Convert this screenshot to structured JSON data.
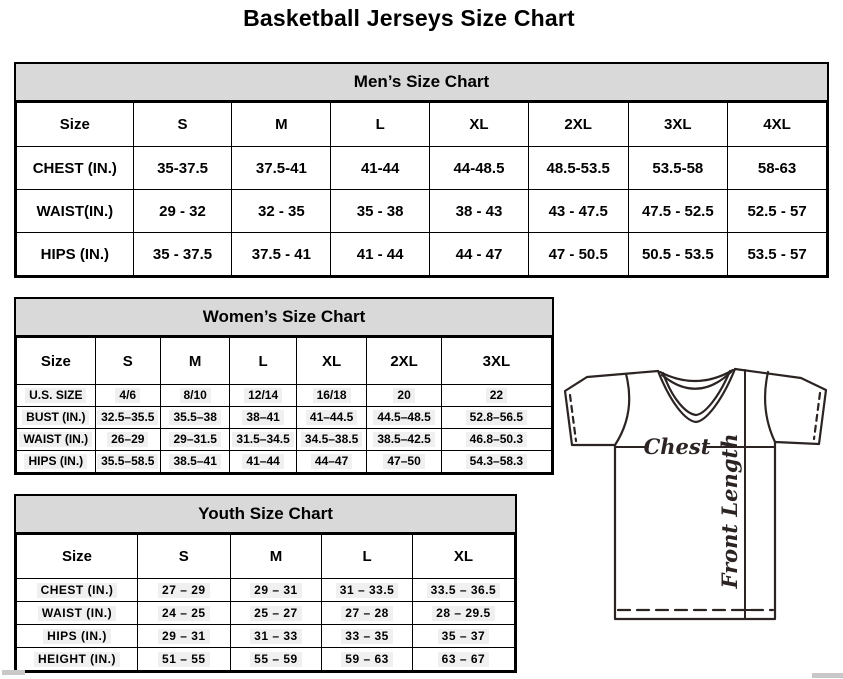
{
  "page_title": "Basketball Jerseys Size Chart",
  "colors": {
    "table_header_bg": "#d9d9d9",
    "table_border": "#000000",
    "diagram_line": "#2b2423"
  },
  "tables": {
    "mens": {
      "title": "Men’s Size Chart",
      "header": [
        "Size",
        "S",
        "M",
        "L",
        "XL",
        "2XL",
        "3XL",
        "4XL"
      ],
      "rows": [
        {
          "label": "CHEST (IN.)",
          "values": [
            "35-37.5",
            "37.5-41",
            "41-44",
            "44-48.5",
            "48.5-53.5",
            "53.5-58",
            "58-63"
          ]
        },
        {
          "label": "WAIST(IN.)",
          "values": [
            "29 - 32",
            "32 - 35",
            "35 - 38",
            "38 - 43",
            "43 - 47.5",
            "47.5 - 52.5",
            "52.5 - 57"
          ]
        },
        {
          "label": "HIPS (IN.)",
          "values": [
            "35 - 37.5",
            "37.5 - 41",
            "41 - 44",
            "44 - 47",
            "47 - 50.5",
            "50.5 - 53.5",
            "53.5 - 57"
          ]
        }
      ]
    },
    "womens": {
      "title": "Women’s Size Chart",
      "header": [
        "Size",
        "S",
        "M",
        "L",
        "XL",
        "2XL",
        "3XL"
      ],
      "rows": [
        {
          "label": "U.S. SIZE",
          "values": [
            "4/6",
            "8/10",
            "12/14",
            "16/18",
            "20",
            "22"
          ]
        },
        {
          "label": "BUST (IN.)",
          "values": [
            "32.5–35.5",
            "35.5–38",
            "38–41",
            "41–44.5",
            "44.5–48.5",
            "52.8–56.5"
          ]
        },
        {
          "label": "WAIST (IN.)",
          "values": [
            "26–29",
            "29–31.5",
            "31.5–34.5",
            "34.5–38.5",
            "38.5–42.5",
            "46.8–50.3"
          ]
        },
        {
          "label": "HIPS (IN.)",
          "values": [
            "35.5–58.5",
            "38.5–41",
            "41–44",
            "44–47",
            "47–50",
            "54.3–58.3"
          ]
        }
      ]
    },
    "youth": {
      "title": "Youth Size Chart",
      "header": [
        "Size",
        "S",
        "M",
        "L",
        "XL"
      ],
      "rows": [
        {
          "label": "CHEST (IN.)",
          "values": [
            "27 – 29",
            "29 – 31",
            "31 – 33.5",
            "33.5 – 36.5"
          ]
        },
        {
          "label": "WAIST (IN.)",
          "values": [
            "24 – 25",
            "25 – 27",
            "27 – 28",
            "28 – 29.5"
          ]
        },
        {
          "label": "HIPS (IN.)",
          "values": [
            "29 – 31",
            "31 – 33",
            "33 – 35",
            "35 – 37"
          ]
        },
        {
          "label": "HEIGHT (IN.)",
          "values": [
            "51 – 55",
            "55 – 59",
            "59 – 63",
            "63 – 67"
          ]
        }
      ]
    }
  },
  "column_widths": {
    "mens": [
      "14.4%",
      "12.2%",
      "12.2%",
      "12.2%",
      "12.2%",
      "12.3%",
      "12.3%",
      "12.2%"
    ],
    "womens": [
      "14.7%",
      "12.2%",
      "13.0%",
      "12.4%",
      "13.2%",
      "13.9%",
      "20.6%"
    ],
    "youth": [
      "24.3%",
      "18.6%",
      "18.4%",
      "18.2%",
      "20.5%"
    ]
  },
  "diagram": {
    "chest_label": "Chest",
    "front_length_label": "Front Length"
  }
}
